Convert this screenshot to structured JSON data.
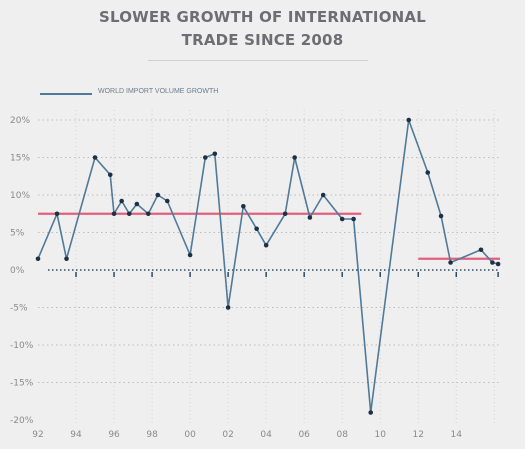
{
  "chart_data": {
    "type": "line",
    "title_lines": [
      "SLOWER GROWTH OF INTERNATIONAL",
      "TRADE SINCE 2008"
    ],
    "xlabel": "",
    "ylabel": "",
    "ylim": [
      -20,
      20
    ],
    "xlim": [
      1992,
      2016.3
    ],
    "grid": true,
    "legend_position": "top-left",
    "yticks": [
      20,
      15,
      10,
      5,
      0,
      -5,
      -10,
      -15,
      -20
    ],
    "ytick_labels": [
      "20%",
      "15%",
      "10%",
      "5%",
      "0%",
      "-5%",
      "-10%",
      "-15%",
      "-20%"
    ],
    "xticks": [
      1992,
      1994,
      1996,
      1998,
      2000,
      2002,
      2004,
      2006,
      2008,
      2010,
      2012,
      2014
    ],
    "xtick_labels": [
      "92",
      "94",
      "96",
      "98",
      "00",
      "02",
      "04",
      "06",
      "08",
      "10",
      "12",
      "14"
    ],
    "series": [
      {
        "name": "WORLD IMPORT VOLUME GROWTH",
        "color": "#4f7a99",
        "x": [
          1992,
          1993,
          1993.5,
          1995,
          1995.8,
          1996,
          1996.4,
          1996.8,
          1997.2,
          1997.8,
          1998.3,
          1998.8,
          2000,
          2000.8,
          2001.3,
          2002,
          2002.8,
          2003.5,
          2004,
          2005,
          2005.5,
          2006.3,
          2007,
          2008,
          2008.6,
          2009.5,
          2011.5,
          2012.5,
          2013.2,
          2013.7,
          2015.3,
          2015.9,
          2016.2
        ],
        "y": [
          1.5,
          7.5,
          1.5,
          15,
          12.7,
          7.5,
          9.2,
          7.5,
          8.8,
          7.5,
          10,
          9.2,
          2,
          15,
          15.5,
          -5,
          8.5,
          5.5,
          3.3,
          7.5,
          15,
          7,
          10,
          6.8,
          6.8,
          -19,
          20,
          13,
          7.2,
          1,
          2.7,
          1,
          0.8
        ]
      }
    ],
    "reference_lines": [
      {
        "x_start": 1992,
        "x_end": 2009,
        "y": 7.5,
        "color": "#e2607f"
      },
      {
        "x_start": 2012,
        "x_end": 2016.3,
        "y": 1.5,
        "color": "#e2607f"
      }
    ]
  },
  "colors": {
    "background": "#efefef",
    "series_line": "#4f7a99",
    "average_line": "#e2607f",
    "gridline": "#bdbdbd",
    "axis_text": "#8a8a8a",
    "point": "#1e3144",
    "zero_line": "#2d4a63"
  }
}
